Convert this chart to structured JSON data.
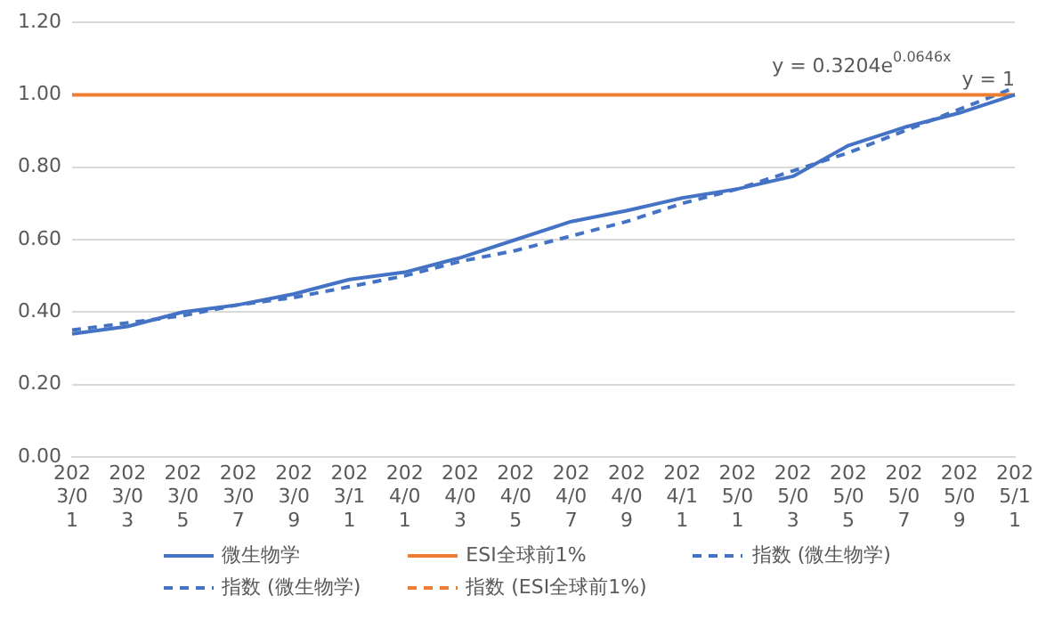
{
  "chart_data": {
    "type": "line",
    "categories": [
      "2023/01",
      "2023/03",
      "2023/05",
      "2023/07",
      "2023/09",
      "2023/11",
      "2024/01",
      "2024/03",
      "2024/05",
      "2024/07",
      "2024/09",
      "2024/11",
      "2025/01",
      "2025/03",
      "2025/05",
      "2025/07",
      "2025/09",
      "2025/11"
    ],
    "series": [
      {
        "name": "微生物学",
        "color": "#4472c4",
        "line_style": "solid",
        "values": [
          0.34,
          0.36,
          0.4,
          0.42,
          0.45,
          0.49,
          0.51,
          0.55,
          0.6,
          0.65,
          0.68,
          0.715,
          0.74,
          0.775,
          0.86,
          0.91,
          0.95,
          1.0
        ]
      },
      {
        "name": "ESI全球前1%",
        "color": "#ed7d31",
        "line_style": "solid",
        "values": [
          1,
          1,
          1,
          1,
          1,
          1,
          1,
          1,
          1,
          1,
          1,
          1,
          1,
          1,
          1,
          1,
          1,
          1
        ]
      },
      {
        "name": "指数 (微生物学)",
        "color": "#4472c4",
        "line_style": "dashed",
        "values": [
          0.35,
          0.37,
          0.39,
          0.42,
          0.44,
          0.47,
          0.5,
          0.54,
          0.57,
          0.61,
          0.65,
          0.7,
          0.74,
          0.79,
          0.84,
          0.9,
          0.96,
          1.02
        ]
      },
      {
        "name": "指数 (微生物学)",
        "color": "#4472c4",
        "line_style": "dashed",
        "values": [
          null,
          null,
          null,
          null,
          null,
          null,
          null,
          null,
          null,
          null,
          null,
          null,
          null,
          null,
          null,
          null,
          null,
          null
        ]
      },
      {
        "name": "指数 (ESI全球前1%)",
        "color": "#ed7d31",
        "line_style": "dashed",
        "values": [
          null,
          null,
          null,
          null,
          null,
          null,
          null,
          null,
          null,
          null,
          null,
          null,
          null,
          null,
          null,
          null,
          null,
          null
        ]
      }
    ],
    "ylim": [
      0,
      1.2
    ],
    "yticks": [
      {
        "value": 0,
        "label": "0.00"
      },
      {
        "value": 0.2,
        "label": "0.20"
      },
      {
        "value": 0.4,
        "label": "0.40"
      },
      {
        "value": 0.6,
        "label": "0.60"
      },
      {
        "value": 0.8,
        "label": "0.80"
      },
      {
        "value": 1,
        "label": "1.00"
      },
      {
        "value": 1.2,
        "label": "1.20"
      }
    ],
    "grid": "y",
    "legend": "bottom",
    "marker": "none",
    "annotations": [
      "y = 0.3204e$^{0.0646x}$",
      {
        "text": "y = 1",
        "x": "2025/11",
        "y": 1.0
      }
    ]
  }
}
